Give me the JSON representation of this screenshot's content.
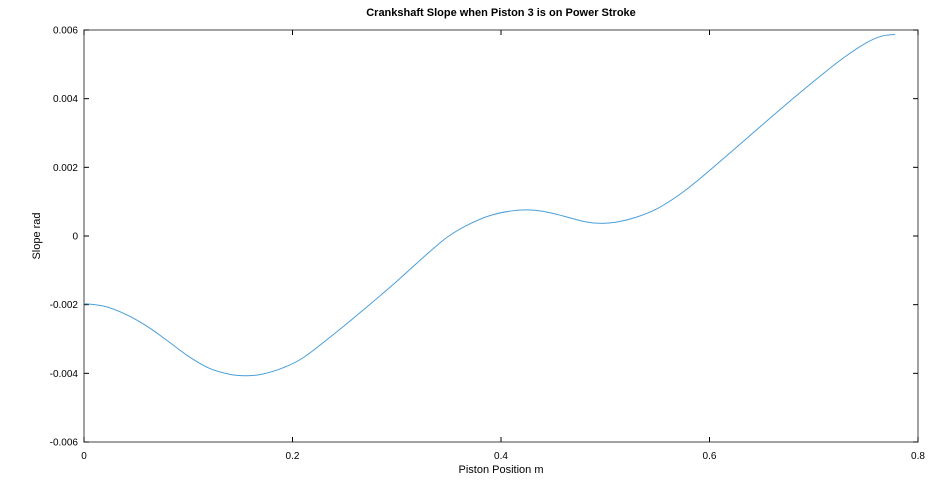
{
  "chart_data": {
    "type": "line",
    "title": "Crankshaft Slope when Piston 3 is on Power Stroke",
    "xlabel": "Piston Position m",
    "ylabel": "Slope rad",
    "xlim": [
      0,
      0.8
    ],
    "ylim": [
      -0.006,
      0.006
    ],
    "xticks": [
      0,
      0.2,
      0.4,
      0.6,
      0.8
    ],
    "xtick_labels": [
      "0",
      "0.2",
      "0.4",
      "0.6",
      "0.8"
    ],
    "yticks": [
      -0.006,
      -0.004,
      -0.002,
      0,
      0.002,
      0.004,
      0.006
    ],
    "ytick_labels": [
      "-0.006",
      "-0.004",
      "-0.002",
      "0",
      "0.002",
      "0.004",
      "0.006"
    ],
    "grid": false,
    "line_color": "#4a9fd8",
    "series": [
      {
        "name": "slope",
        "x": [
          0,
          0.02,
          0.04,
          0.06,
          0.08,
          0.1,
          0.12,
          0.14,
          0.155,
          0.17,
          0.19,
          0.21,
          0.24,
          0.27,
          0.3,
          0.33,
          0.35,
          0.37,
          0.39,
          0.41,
          0.425,
          0.44,
          0.46,
          0.48,
          0.495,
          0.51,
          0.53,
          0.55,
          0.57,
          0.59,
          0.62,
          0.65,
          0.68,
          0.71,
          0.73,
          0.75,
          0.765,
          0.778
        ],
        "values": [
          -0.00197,
          -0.00205,
          -0.00228,
          -0.00262,
          -0.00305,
          -0.0035,
          -0.00385,
          -0.00403,
          -0.00407,
          -0.00403,
          -0.00385,
          -0.00355,
          -0.00285,
          -0.0021,
          -0.00132,
          -0.0005,
          0.0,
          0.00035,
          0.0006,
          0.00073,
          0.00076,
          0.00072,
          0.00058,
          0.00042,
          0.00037,
          0.0004,
          0.00055,
          0.0008,
          0.00118,
          0.00165,
          0.00243,
          0.00322,
          0.004,
          0.00475,
          0.00522,
          0.00562,
          0.00582,
          0.00587
        ]
      }
    ]
  }
}
